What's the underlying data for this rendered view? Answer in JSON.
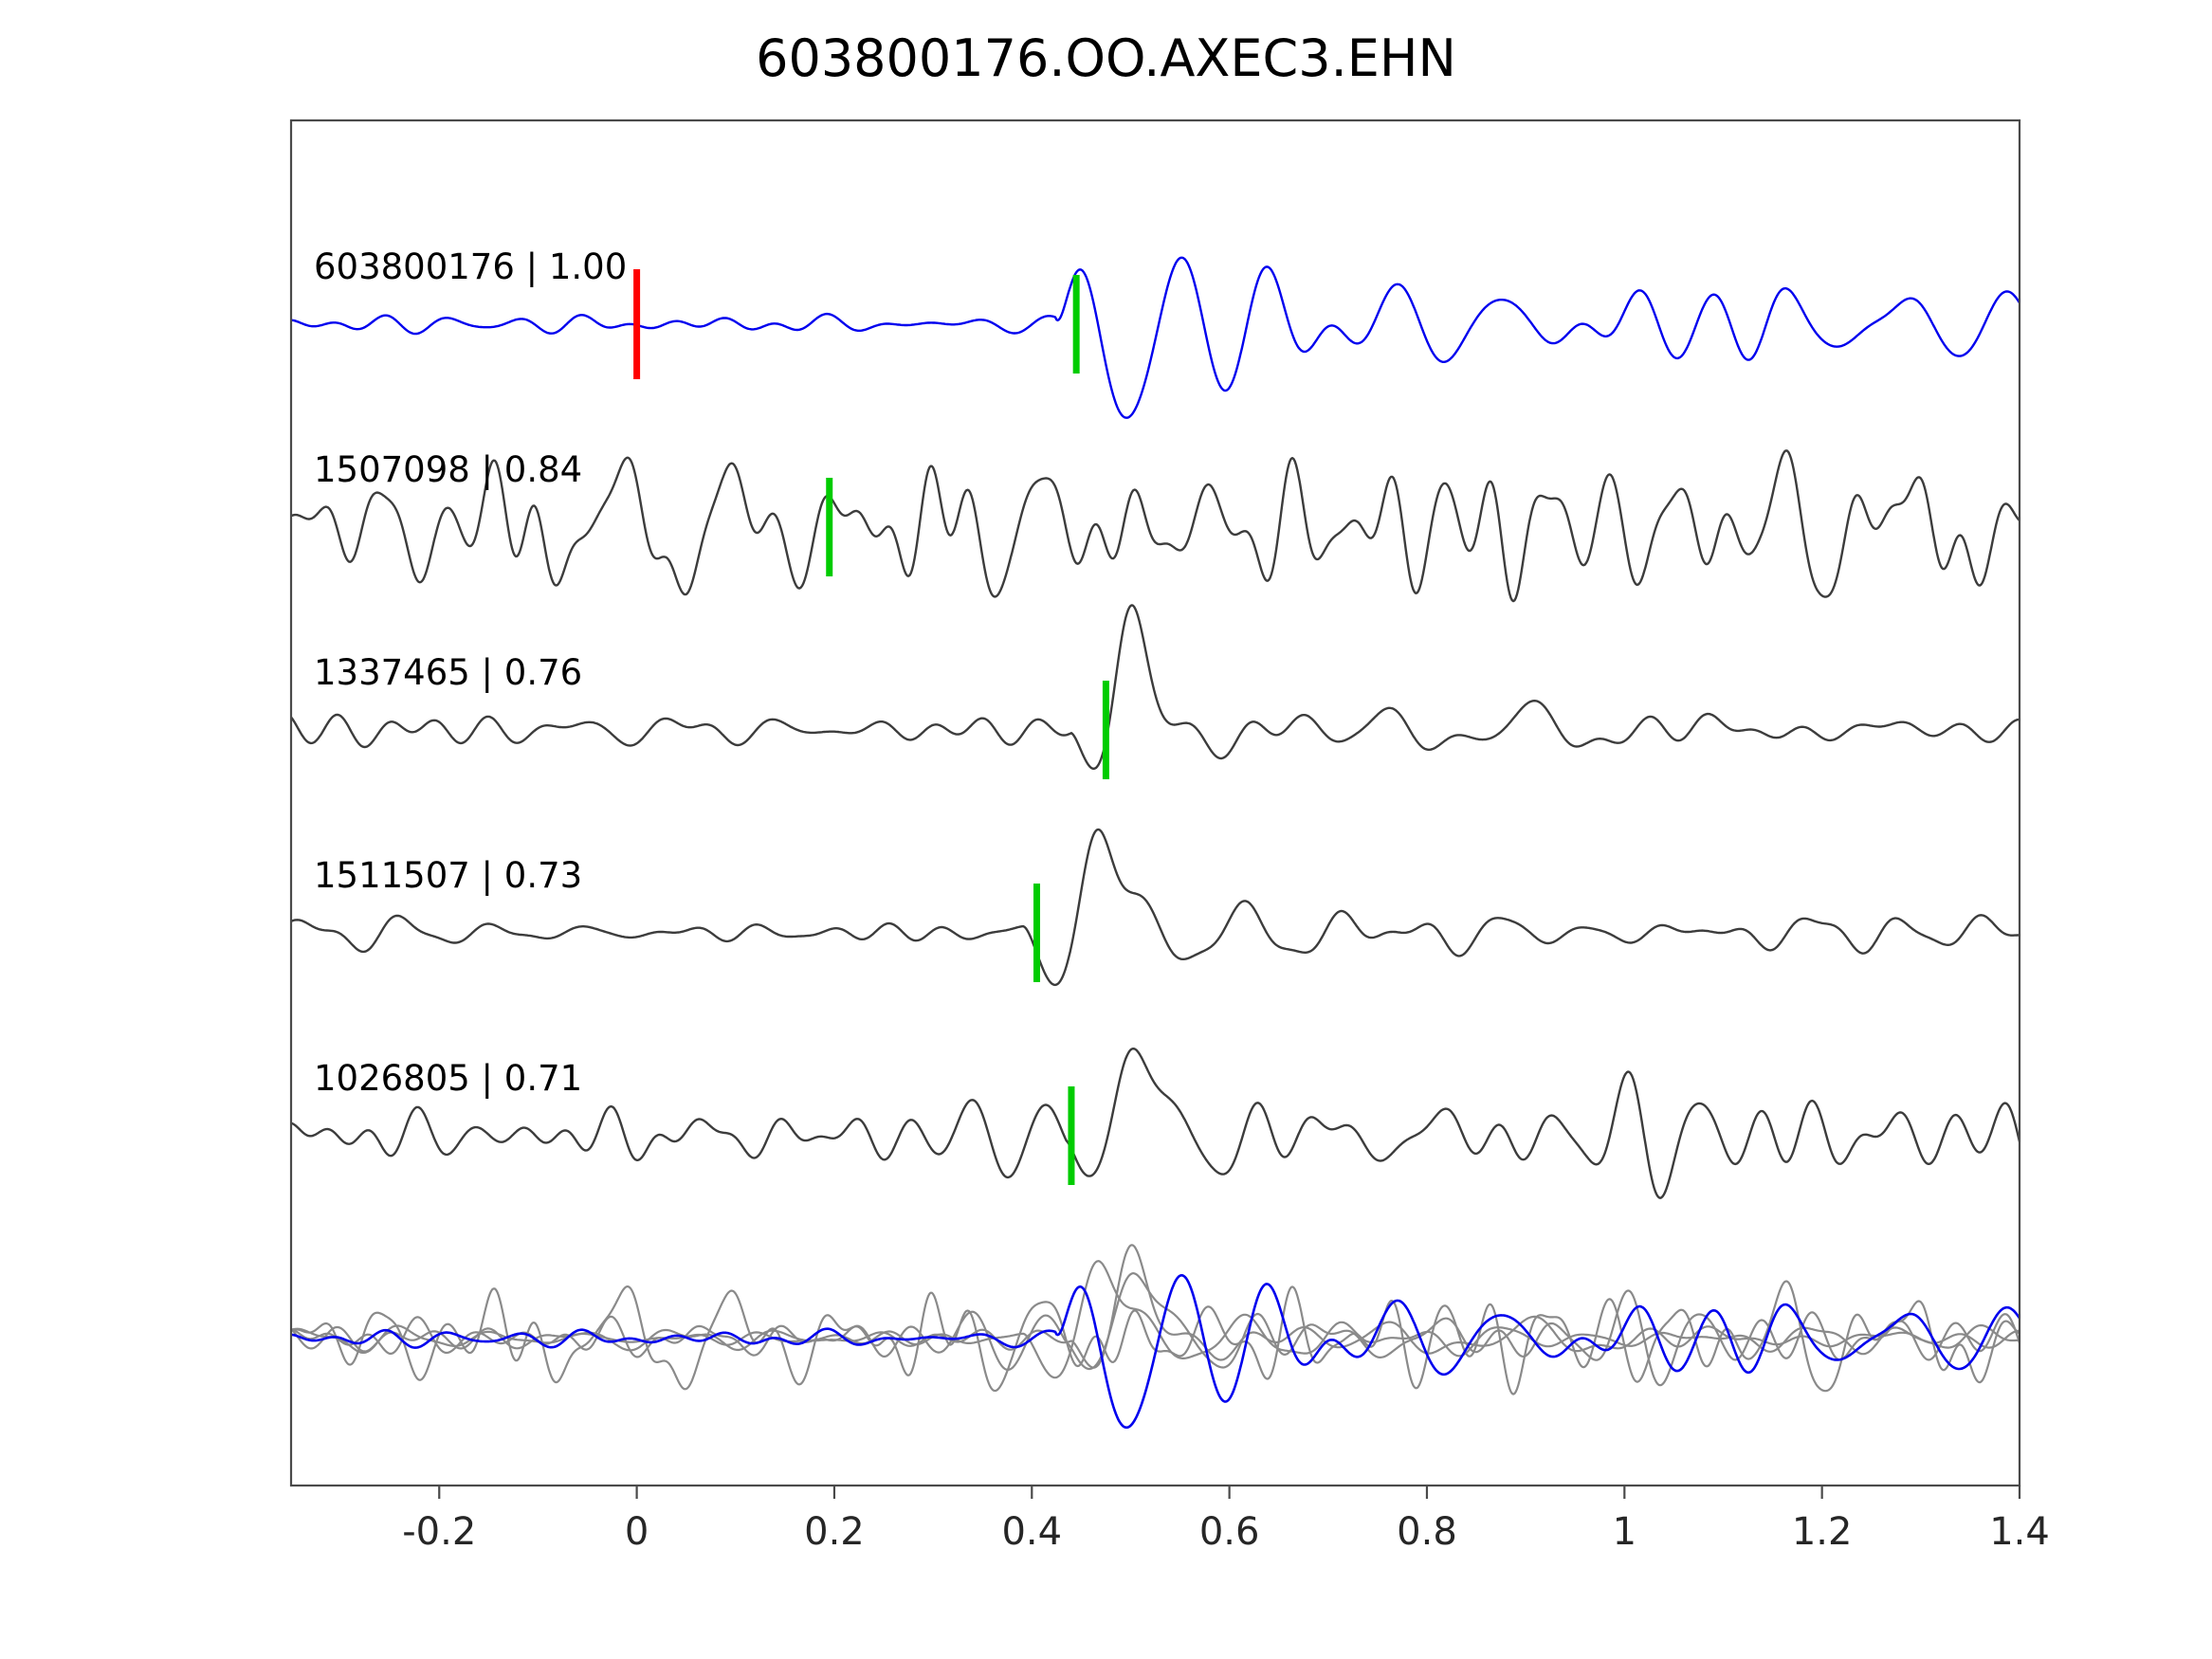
{
  "chart_data": {
    "type": "line",
    "title": "603800176.OO.AXEC3.EHN",
    "xlabel": "",
    "ylabel": "",
    "x_range": [
      -0.35,
      1.4
    ],
    "x_ticks": [
      {
        "value": -0.2,
        "label": "-0.2"
      },
      {
        "value": 0,
        "label": "0"
      },
      {
        "value": 0.2,
        "label": "0.2"
      },
      {
        "value": 0.4,
        "label": "0.4"
      },
      {
        "value": 0.6,
        "label": "0.6"
      },
      {
        "value": 0.8,
        "label": "0.8"
      },
      {
        "value": 1,
        "label": "1"
      },
      {
        "value": 1.2,
        "label": "1.2"
      },
      {
        "value": 1.4,
        "label": "1.4"
      }
    ],
    "grid": false,
    "legend": "none",
    "colors": {
      "reference_trace": "#0000ee",
      "template_trace": "#3c3c3c",
      "overlay_gray": "#8a8a8a",
      "pick_marker": "#00cc00",
      "reference_marker": "#ff0000",
      "axis": "#4a4a4a",
      "tick_text": "#262626",
      "label_text": "#000000"
    },
    "traces": [
      {
        "id": "603800176",
        "correlation": 1.0,
        "label": "603800176 | 1.00",
        "color_role": "reference_trace",
        "pick_time": 0.445,
        "reference_time": 0.0,
        "synthesis": {
          "seed": 11,
          "noise_amp": 4,
          "noise_band": [
            7,
            22
          ],
          "burst": {
            "onset": 0.425,
            "freq": 9.5,
            "amp": 110,
            "tau": 0.16,
            "sign": 1,
            "pulses": [
              {
                "u": 0.05,
                "w": 0.028,
                "a": -55
              }
            ],
            "coda_amp": 26,
            "coda_tau": 1.8,
            "coda_band": [
              7,
              16
            ]
          }
        }
      },
      {
        "id": "1507098",
        "correlation": 0.84,
        "label": "1507098 | 0.84",
        "color_role": "template_trace",
        "pick_time": 0.195,
        "synthesis": {
          "seed": 22,
          "noise_amp": 34,
          "noise_band": [
            6,
            30
          ]
        }
      },
      {
        "id": "1337465",
        "correlation": 0.76,
        "label": "1337465 | 0.76",
        "color_role": "template_trace",
        "pick_time": 0.475,
        "synthesis": {
          "seed": 33,
          "noise_amp": 7,
          "noise_band": [
            7,
            22
          ],
          "burst": {
            "onset": 0.44,
            "freq": 8,
            "amp": 60,
            "tau": 0.12,
            "sign": -1,
            "pulses": [
              {
                "u": 0.058,
                "w": 0.02,
                "a": 100
              }
            ],
            "coda_amp": 16,
            "coda_tau": 1.2,
            "coda_band": [
              5,
              14
            ]
          }
        }
      },
      {
        "id": "1511507",
        "correlation": 0.73,
        "label": "1511507 | 0.73",
        "color_role": "template_trace",
        "pick_time": 0.405,
        "synthesis": {
          "seed": 44,
          "noise_amp": 7,
          "noise_band": [
            7,
            22
          ],
          "burst": {
            "onset": 0.39,
            "freq": 7,
            "amp": 70,
            "tau": 0.13,
            "sign": -1,
            "pulses": [
              {
                "u": 0.075,
                "w": 0.022,
                "a": 105
              }
            ],
            "coda_amp": 18,
            "coda_tau": 1.1,
            "coda_band": [
              5,
              14
            ]
          }
        }
      },
      {
        "id": "1026805",
        "correlation": 0.71,
        "label": "1026805 | 0.71",
        "color_role": "template_trace",
        "pick_time": 0.44,
        "synthesis": {
          "seed": 55,
          "noise_amp": 18,
          "noise_band": [
            7,
            26
          ],
          "burst": {
            "onset": 0.435,
            "freq": 8,
            "amp": 60,
            "tau": 0.11,
            "sign": -1,
            "pulses": [
              {
                "u": 0.06,
                "w": 0.022,
                "a": 95
              }
            ],
            "coda_amp": 20,
            "coda_tau": 1.5,
            "coda_band": [
              6,
              16
            ]
          }
        }
      }
    ],
    "overlay_row": {
      "includes": [
        "1507098",
        "1337465",
        "1511507",
        "1026805",
        "603800176"
      ],
      "highlight_id": "603800176"
    }
  }
}
